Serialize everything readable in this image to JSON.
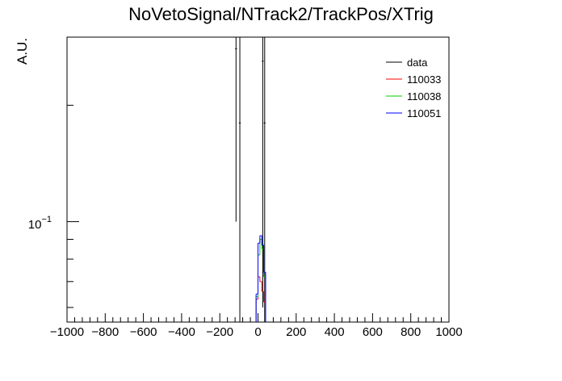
{
  "chart_data": {
    "type": "line",
    "title": "NoVetoSignal/NTrack2/TrackPos/XTrig",
    "xlabel": "",
    "ylabel": "A.U.",
    "xlim": [
      -1000,
      1000
    ],
    "x_ticks": [
      "−1000",
      "−800",
      "−600",
      "−400",
      "−200",
      "0",
      "200",
      "400",
      "600",
      "800",
      "1000"
    ],
    "y_scale": "log",
    "ylim": [
      0.055,
      0.3
    ],
    "y_major_tick": {
      "base": "10",
      "exponent": "−1"
    },
    "legend_position": "top-right",
    "legend": [
      {
        "name": "data",
        "color": "#000000"
      },
      {
        "name": "110033",
        "color": "#ff0000"
      },
      {
        "name": "110038",
        "color": "#00cc00"
      },
      {
        "name": "110051",
        "color": "#0000ff"
      }
    ],
    "bin_width": 10,
    "series": [
      {
        "name": "data",
        "color": "#000000",
        "style": "errorbar",
        "points": [
          {
            "x": -115,
            "y": 0.28,
            "err_low": 0.18,
            "err_high": 0.02
          },
          {
            "x": -95,
            "y": 0.18,
            "err_low": 0.125,
            "err_high": 0.12
          },
          {
            "x": 25,
            "y": 0.26,
            "err_low": 0.2,
            "err_high": 0.04
          },
          {
            "x": 35,
            "y": 0.18,
            "err_low": 0.125,
            "err_high": 0.12
          }
        ]
      },
      {
        "name": "110033",
        "color": "#ff0000",
        "style": "hist",
        "bins": [
          {
            "x": -5,
            "y": 0.063
          },
          {
            "x": 5,
            "y": 0.072
          },
          {
            "x": 15,
            "y": 0.07
          },
          {
            "x": 25,
            "y": 0.066
          },
          {
            "x": 35,
            "y": 0.062
          }
        ]
      },
      {
        "name": "110038",
        "color": "#00cc00",
        "style": "hist",
        "bins": [
          {
            "x": -5,
            "y": 0.064
          },
          {
            "x": 5,
            "y": 0.082
          },
          {
            "x": 15,
            "y": 0.09
          },
          {
            "x": 25,
            "y": 0.085
          },
          {
            "x": 35,
            "y": 0.072
          }
        ]
      },
      {
        "name": "110051",
        "color": "#0000ff",
        "style": "hist",
        "bins": [
          {
            "x": -5,
            "y": 0.065
          },
          {
            "x": 5,
            "y": 0.088
          },
          {
            "x": 15,
            "y": 0.092
          },
          {
            "x": 25,
            "y": 0.087
          },
          {
            "x": 35,
            "y": 0.074
          }
        ]
      }
    ]
  }
}
